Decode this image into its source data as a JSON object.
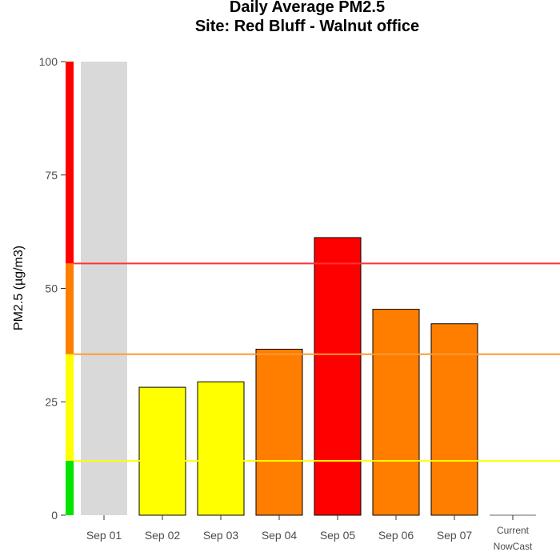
{
  "chart_data": {
    "type": "bar",
    "title": "Daily Average PM2.5",
    "subtitle": "Site: Red Bluff - Walnut office",
    "xlabel": "",
    "ylabel": "PM2.5 (µg/m3)",
    "ylim": [
      0,
      100
    ],
    "yticks": [
      "0",
      "25",
      "50",
      "75",
      "100"
    ],
    "grid": false,
    "categories": [
      "Sep 01",
      "Sep 02",
      "Sep 03",
      "Sep 04",
      "Sep 05",
      "Sep 06",
      "Sep 07",
      "Current NowCast"
    ],
    "category_lines": [
      [
        "Sep 01"
      ],
      [
        "Sep 02"
      ],
      [
        "Sep 03"
      ],
      [
        "Sep 04"
      ],
      [
        "Sep 05"
      ],
      [
        "Sep 06"
      ],
      [
        "Sep 07"
      ],
      [
        "Current",
        "NowCast"
      ]
    ],
    "values": [
      100,
      28.2,
      29.4,
      36.6,
      61.2,
      45.4,
      42.2,
      0
    ],
    "bar_colors": [
      "#d9d9d9",
      "#ffff00",
      "#ffff00",
      "#ff7e00",
      "#ff0000",
      "#ff7e00",
      "#ff7e00",
      "#999999"
    ],
    "bar_outline": [
      false,
      true,
      true,
      true,
      true,
      true,
      true,
      false
    ],
    "aqi_scale": [
      {
        "from": 0,
        "to": 12,
        "color": "#00e400"
      },
      {
        "from": 12,
        "to": 35.5,
        "color": "#ffff00"
      },
      {
        "from": 35.5,
        "to": 55.5,
        "color": "#ff7e00"
      },
      {
        "from": 55.5,
        "to": 100,
        "color": "#ff0000"
      }
    ],
    "threshold_lines": [
      {
        "value": 12,
        "color": "#ffff00"
      },
      {
        "value": 35.5,
        "color": "#ff9933"
      },
      {
        "value": 55.5,
        "color": "#ff3333"
      }
    ]
  }
}
